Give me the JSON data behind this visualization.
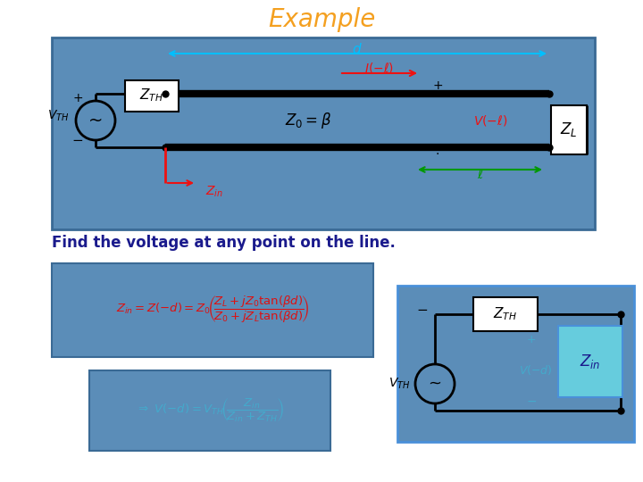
{
  "title": "Example",
  "title_color": "#F4A020",
  "title_fontsize": 20,
  "subtitle": "Find the voltage at any point on the line.",
  "subtitle_color": "#1A1A8C",
  "subtitle_fontsize": 12,
  "bg_color": "#FFFFFF",
  "box_blue": "#5B8DB8",
  "box_border": "#3A6A95",
  "cyan_arrow": "#00BFFF",
  "red_color": "#EE1111",
  "green_color": "#009900",
  "text_red": "#DD1111",
  "text_cyan_light": "#44AACC",
  "text_dark_blue": "#1A1A8C",
  "black": "#000000",
  "white": "#FFFFFF",
  "zin_fill": "#66CCDD"
}
